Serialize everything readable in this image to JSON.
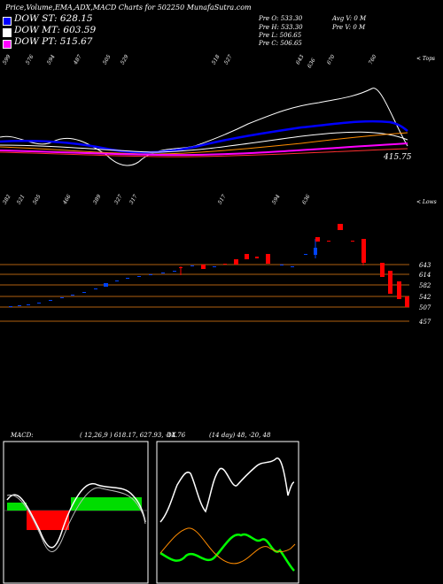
{
  "title": "Price,Volume,EMA,ADX,MACD Charts for 502250 MunafaSutra.com",
  "legend": [
    {
      "label": "DOW ST: 628.15",
      "color": "#0000ff"
    },
    {
      "label": "DOW MT: 603.59",
      "color": "#ffffff"
    },
    {
      "label": "DOW PT: 515.67",
      "color": "#ff00ff"
    }
  ],
  "stats": {
    "pre_o": "Pre O: 533.30",
    "pre_h": "Pre H: 533.30",
    "pre_l": "Pre L: 506.65",
    "pre_c": "Pre C: 506.65",
    "avg_v": "Avg V: 0 M",
    "pre_v": "Pre V: 0 M"
  },
  "top_label": "< Tops",
  "low_label": "< Lows",
  "last_price_label": "415.75",
  "tops": [
    "599",
    "576",
    "594",
    "487",
    "505",
    "529",
    "518",
    "527",
    "643",
    "636",
    "670",
    "760"
  ],
  "lows": [
    "382",
    "521",
    "505",
    "466",
    "389",
    "327",
    "317",
    "517",
    "594",
    "636"
  ],
  "price_levels": [
    "643",
    "614",
    "582",
    "542",
    "507",
    "457"
  ],
  "macd": {
    "label": "MACD:",
    "params": "( 12,26,9 ) 618.17, 627.93, -14.76"
  },
  "adx": {
    "label": "DX",
    "params": "(14 day) 48, -20, 48"
  },
  "colors": {
    "up_candle": "#0044ff",
    "down_candle": "#ff0000",
    "level_line": "#b06010",
    "macd_pos": "#00dd00",
    "macd_neg": "#ff0000",
    "adx_plus": "#00ff00",
    "adx_minus": "#ff8c00"
  },
  "chart_data": [
    {
      "type": "line",
      "name_panel": "ema",
      "y_axis_label": "415.75",
      "series": [
        {
          "name": "DOW ST",
          "color": "#0000ff"
        },
        {
          "name": "DOW MT",
          "color": "#ffffff"
        },
        {
          "name": "DOW PT",
          "color": "#ff00ff"
        }
      ]
    },
    {
      "type": "candlestick",
      "name_panel": "price",
      "levels": [
        643,
        614,
        582,
        542,
        507,
        457
      ]
    }
  ]
}
